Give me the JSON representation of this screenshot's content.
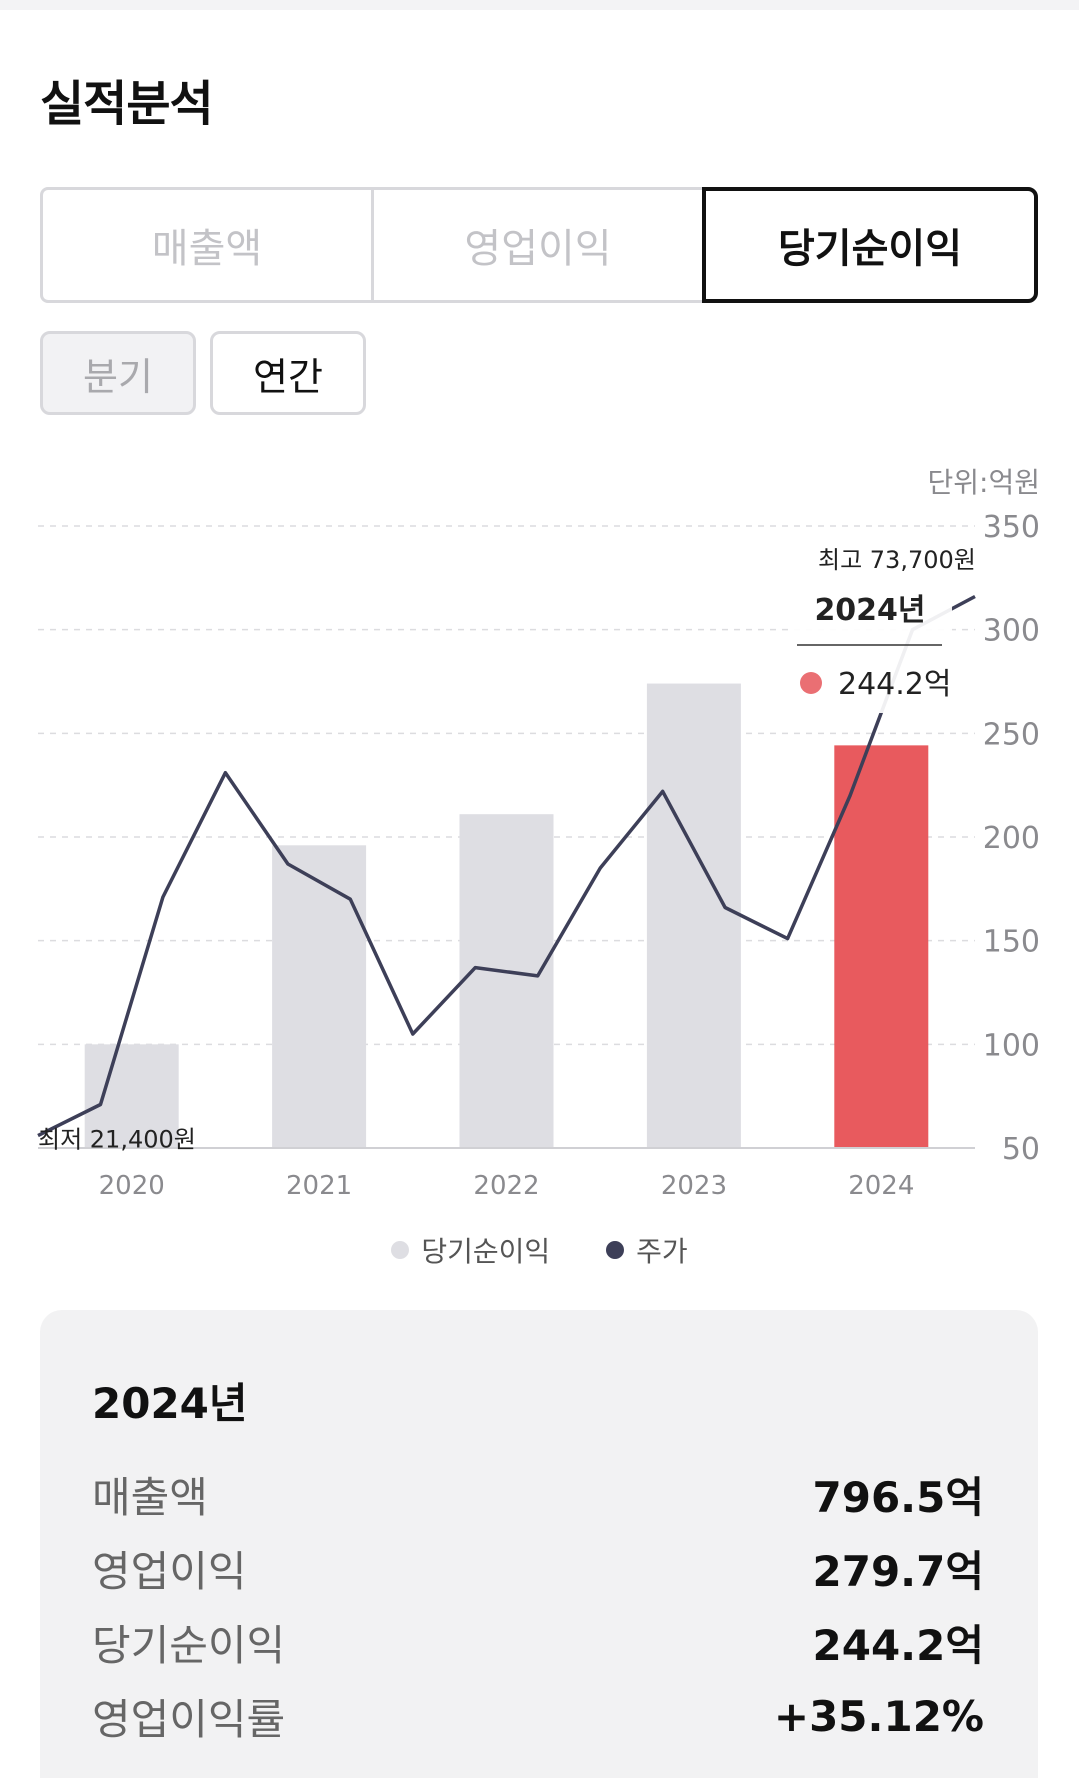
{
  "page": {
    "title": "실적분석"
  },
  "metric_tabs": [
    "매출액",
    "영업이익",
    "당기순이익"
  ],
  "period_buttons": [
    "분기",
    "연간"
  ],
  "colors": {
    "bar_default": "#dedee3",
    "bar_highlight": "#e85a5e",
    "price_line": "#3d3f58",
    "tooltip_dot": "#ea6f73"
  },
  "chart_data": {
    "type": "bar",
    "unit_label": "단위:억원",
    "categories": [
      "2020",
      "2021",
      "2022",
      "2023",
      "2024"
    ],
    "series": [
      {
        "name": "당기순이익",
        "values": [
          100,
          196,
          211,
          274,
          244.2
        ]
      }
    ],
    "price_series": {
      "name": "주가",
      "values": [
        56,
        71,
        171,
        231,
        187,
        170,
        105,
        137,
        133,
        185,
        222,
        166,
        151,
        220,
        300,
        316
      ]
    },
    "ylim": [
      50,
      350
    ],
    "yticks": [
      50,
      100,
      150,
      200,
      250,
      300,
      350
    ],
    "highlight_index": 4,
    "annotations": {
      "low_label": "최저 21,400원",
      "high_label": "최고 73,700원"
    },
    "tooltip": {
      "year_label": "2024년",
      "value_label": "244.2억"
    },
    "legend": [
      "당기순이익",
      "주가"
    ],
    "legend_position": "bottom-center",
    "grid": true
  },
  "summary": {
    "title": "2024년",
    "rows": [
      {
        "label": "매출액",
        "value": "796.5억"
      },
      {
        "label": "영업이익",
        "value": "279.7억"
      },
      {
        "label": "당기순이익",
        "value": "244.2억"
      },
      {
        "label": "영업이익률",
        "value": "+35.12%"
      }
    ]
  }
}
